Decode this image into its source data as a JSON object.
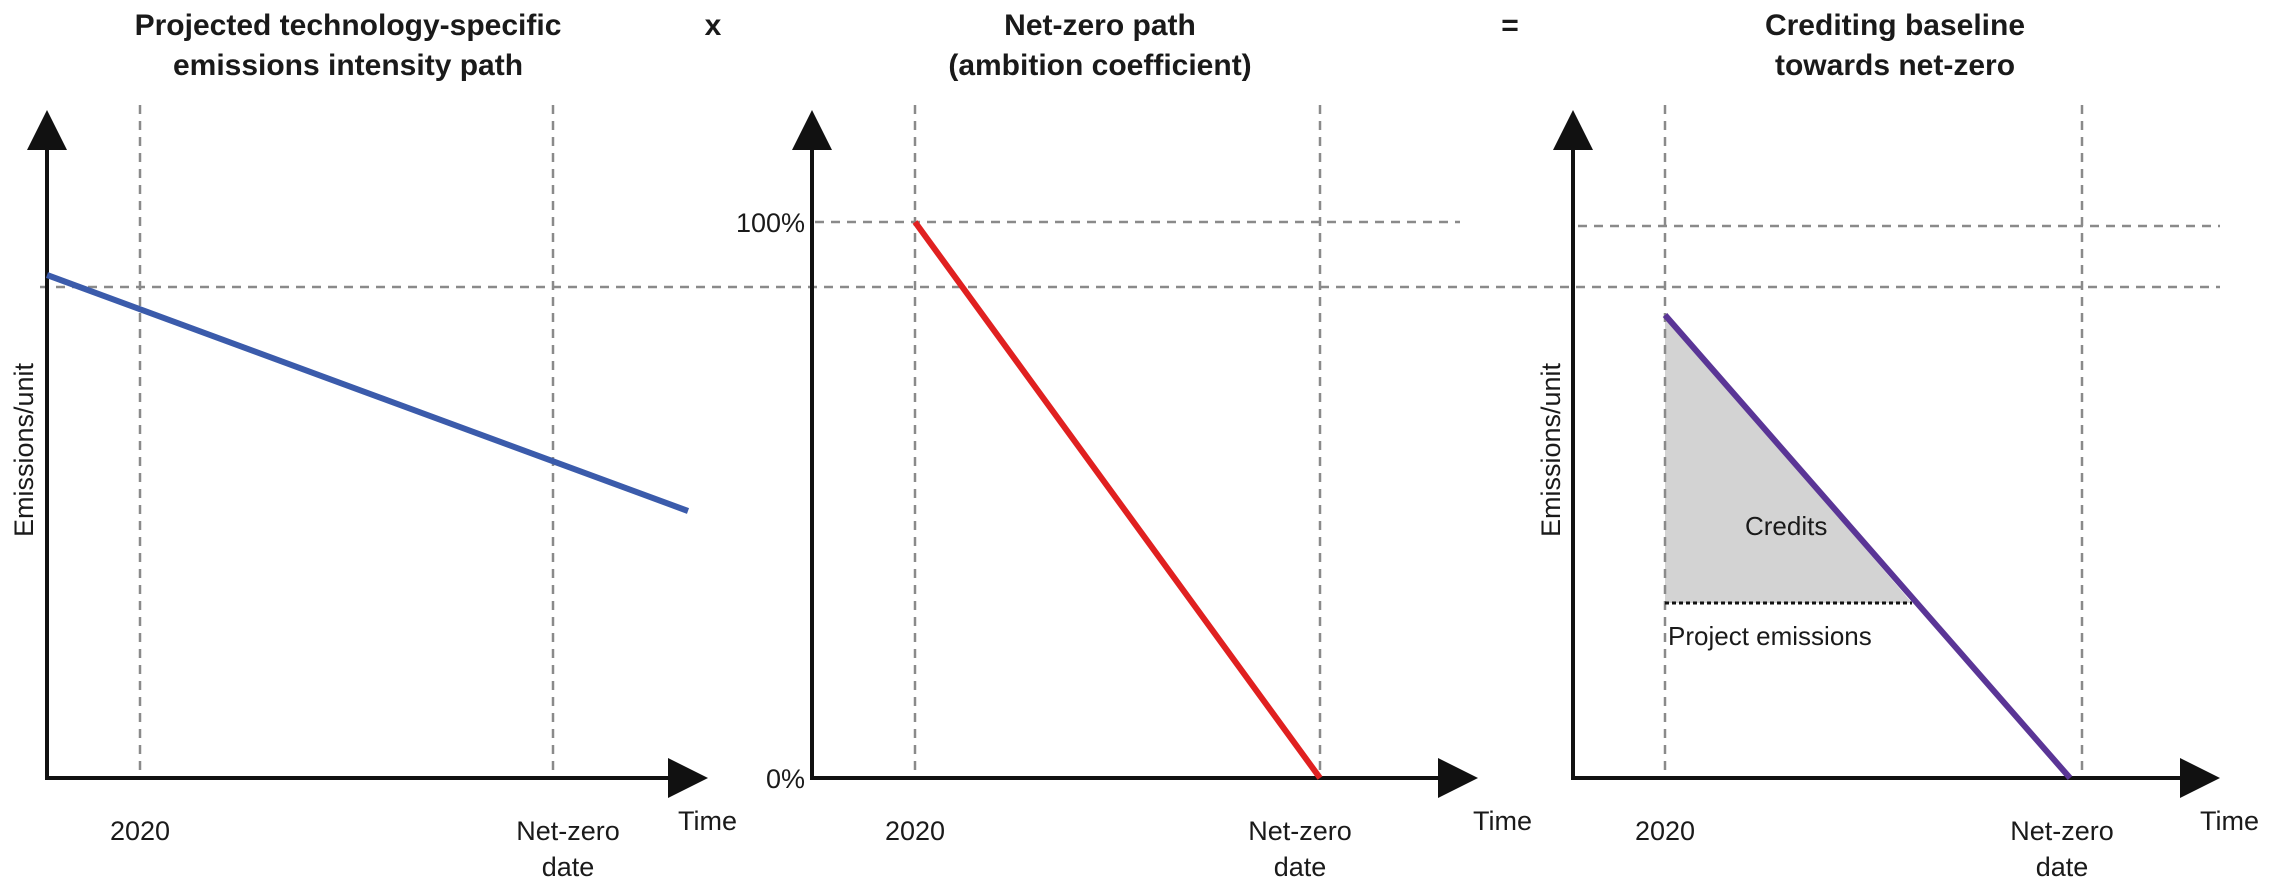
{
  "operators": {
    "times": "x",
    "equals": "="
  },
  "panels": [
    {
      "title_line1": "Projected technology-specific",
      "title_line2": "emissions intensity path",
      "ylabel": "Emissions/unit",
      "xlabel": "Time",
      "tick_2020": "2020",
      "tick_netzero_line1": "Net-zero",
      "tick_netzero_line2": "date",
      "line_color": "#3b5bab"
    },
    {
      "title_line1": "Net-zero path",
      "title_line2": "(ambition coefficient)",
      "xlabel": "Time",
      "tick_2020": "2020",
      "tick_netzero_line1": "Net-zero",
      "tick_netzero_line2": "date",
      "y_top": "100%",
      "y_bottom": "0%",
      "line_color": "#e02020"
    },
    {
      "title_line1": "Crediting baseline",
      "title_line2": "towards net-zero",
      "ylabel": "Emissions/unit",
      "xlabel": "Time",
      "tick_2020": "2020",
      "tick_netzero_line1": "Net-zero",
      "tick_netzero_line2": "date",
      "credits_label": "Credits",
      "project_emissions_label": "Project emissions",
      "line_color": "#5a3596",
      "credits_fill": "#d3d3d3"
    }
  ]
}
